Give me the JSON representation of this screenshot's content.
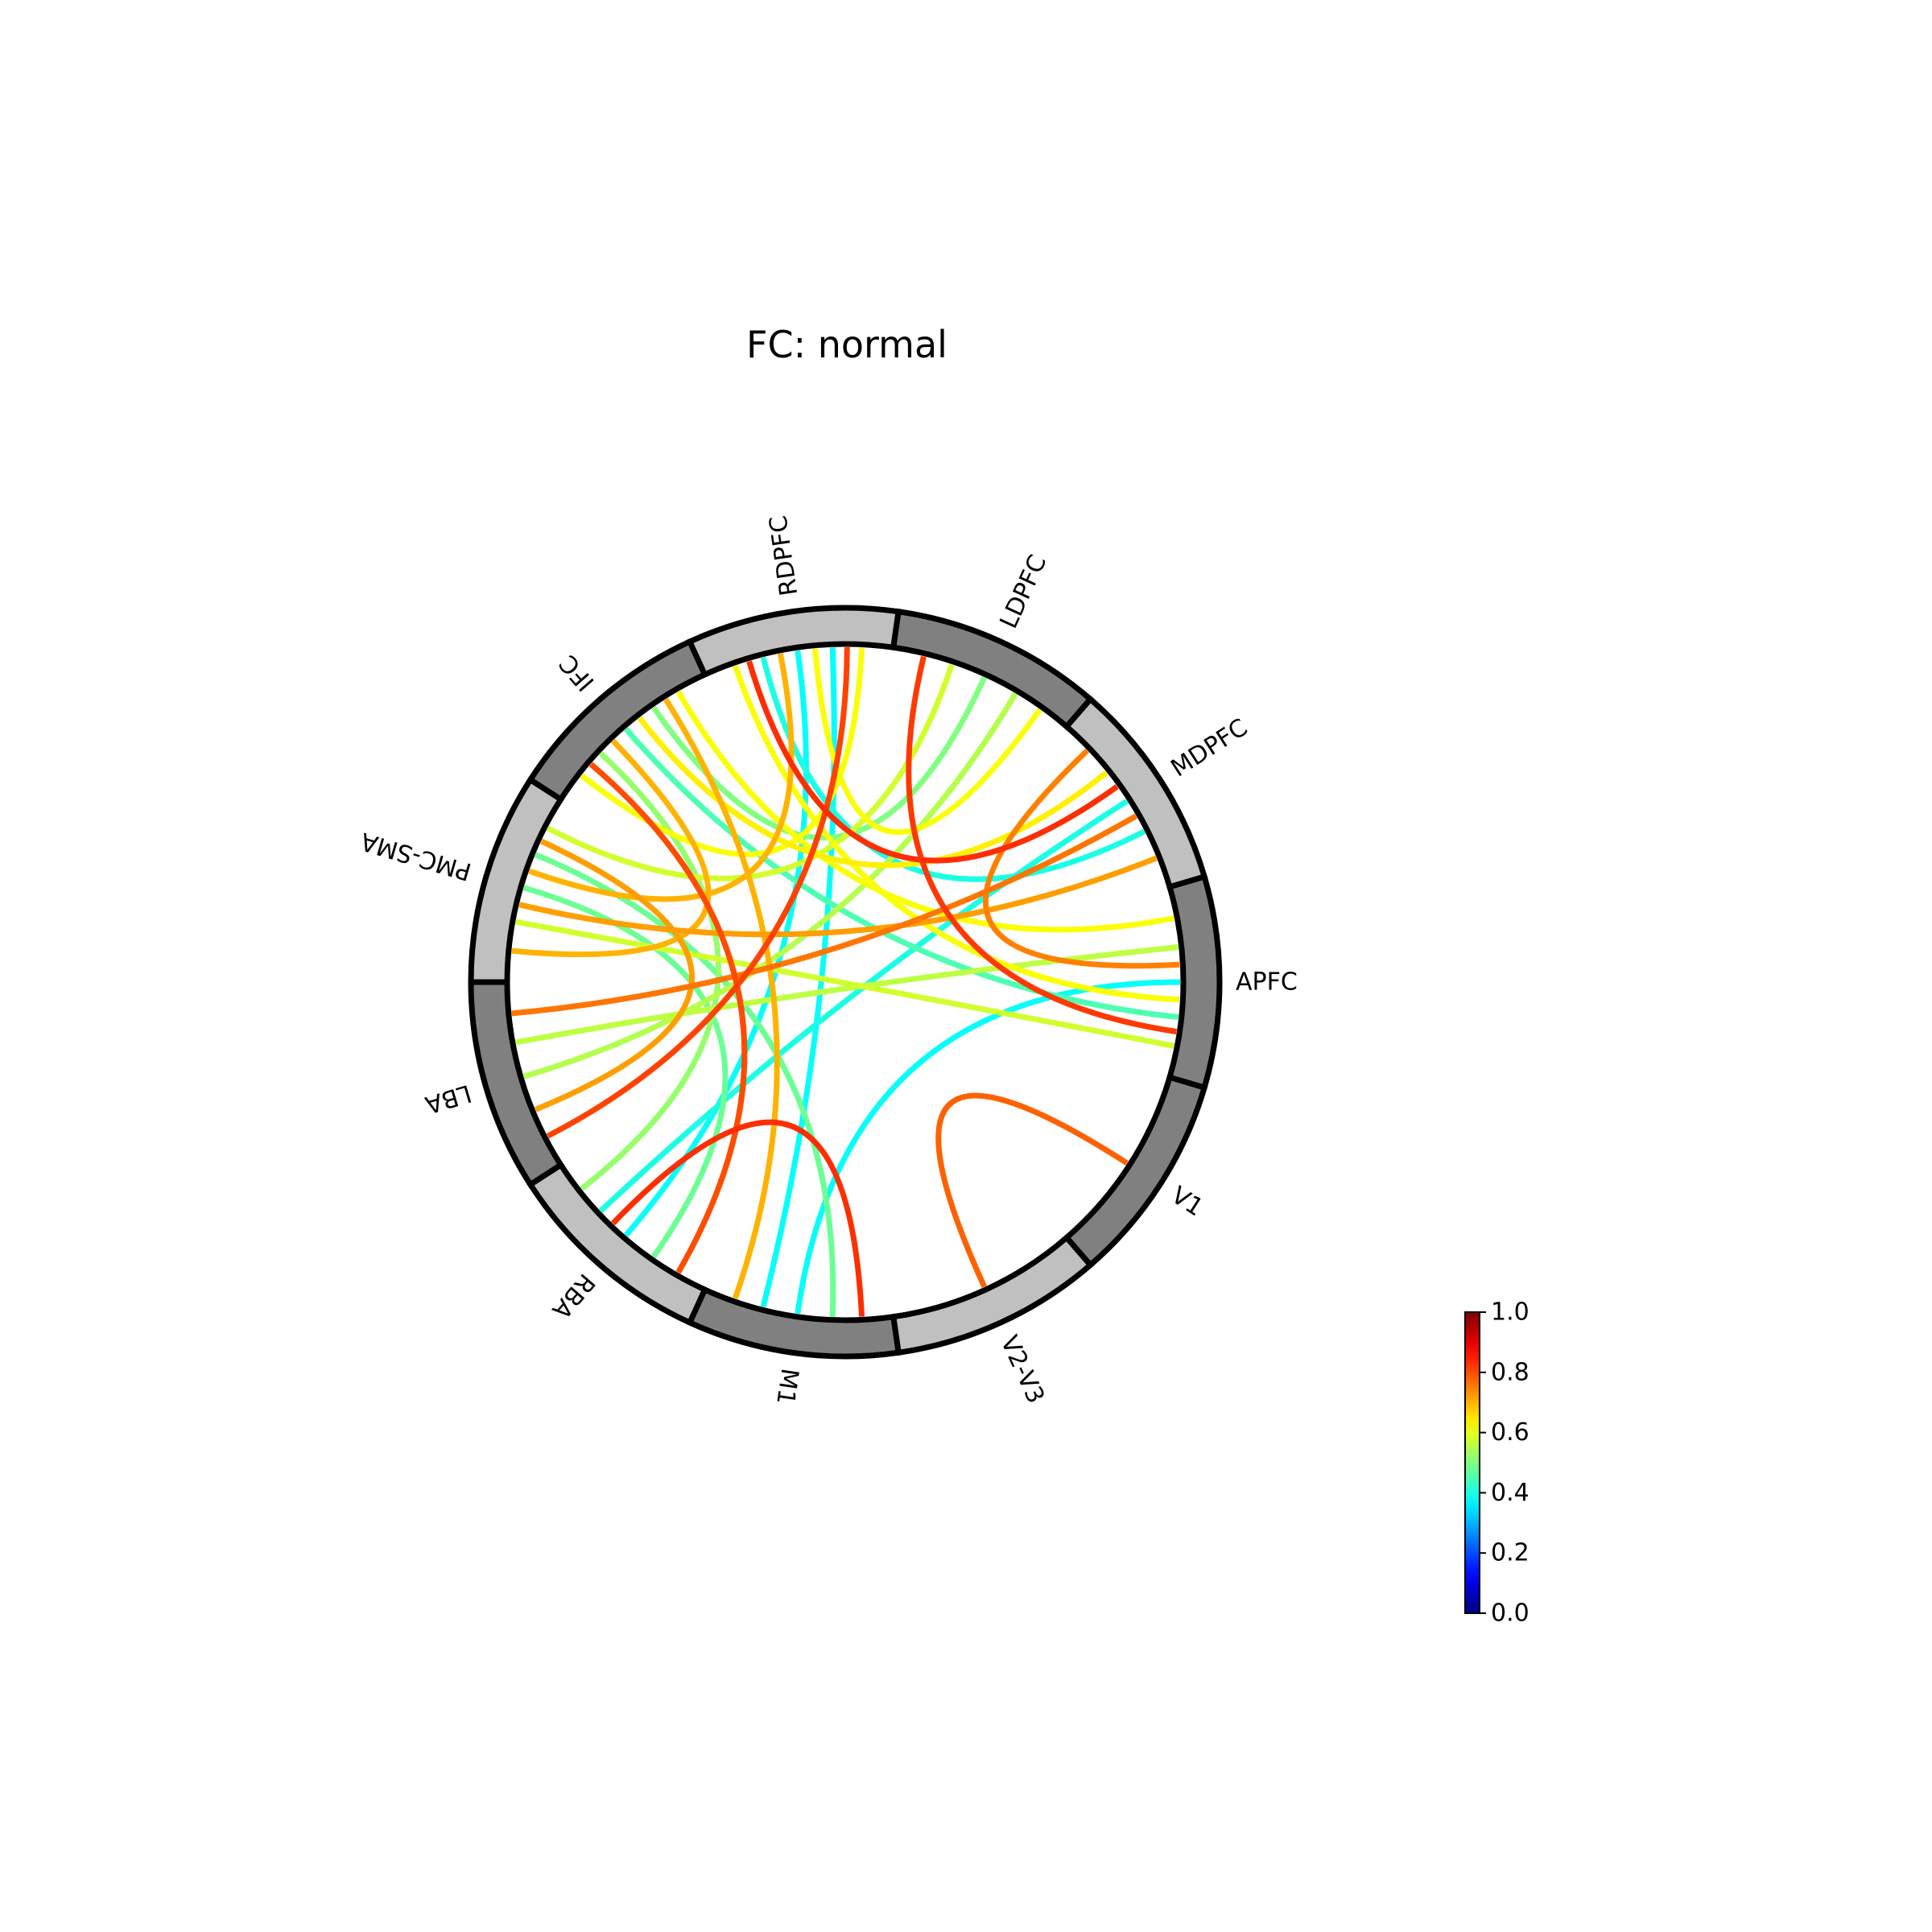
{
  "chart_data": {
    "type": "chord",
    "title": "FC: normal",
    "nodes": [
      "APFC",
      "V1",
      "V2-V3",
      "M1",
      "RBA",
      "LBA",
      "PMC-SMA",
      "IFC",
      "RDPFC",
      "LDPFC",
      "MDPFC"
    ],
    "node_colors": [
      "#808080",
      "#808080",
      "#c0c0c0",
      "#808080",
      "#c0c0c0",
      "#808080",
      "#c0c0c0",
      "#808080",
      "#c0c0c0",
      "#808080",
      "#c0c0c0"
    ],
    "colorbar": {
      "colormap": "jet",
      "vmin": 0.0,
      "vmax": 1.0,
      "ticks": [
        "0.0",
        "0.2",
        "0.4",
        "0.6",
        "0.8",
        "1.0"
      ]
    },
    "edges": [
      {
        "source": "LDPFC",
        "target": "APFC",
        "value": 0.82
      },
      {
        "source": "RDPFC",
        "target": "MDPFC",
        "value": 0.83
      },
      {
        "source": "RDPFC",
        "target": "LBA",
        "value": 0.81
      },
      {
        "source": "IFC",
        "target": "RBA",
        "value": 0.8
      },
      {
        "source": "RBA",
        "target": "M1",
        "value": 0.83
      },
      {
        "source": "V1",
        "target": "V2-V3",
        "value": 0.78
      },
      {
        "source": "MDPFC",
        "target": "APFC",
        "value": 0.75
      },
      {
        "source": "MDPFC",
        "target": "LBA",
        "value": 0.76
      },
      {
        "source": "IFC",
        "target": "PMC-SMA",
        "value": 0.7
      },
      {
        "source": "PMC-SMA",
        "target": "MDPFC",
        "value": 0.72
      },
      {
        "source": "PMC-SMA",
        "target": "LBA",
        "value": 0.72
      },
      {
        "source": "IFC",
        "target": "M1",
        "value": 0.7
      },
      {
        "source": "RDPFC",
        "target": "PMC-SMA",
        "value": 0.7
      },
      {
        "source": "IFC",
        "target": "APFC",
        "value": 0.62
      },
      {
        "source": "IFC",
        "target": "MDPFC",
        "value": 0.64
      },
      {
        "source": "IFC",
        "target": "RDPFC",
        "value": 0.62
      },
      {
        "source": "RDPFC",
        "target": "APFC",
        "value": 0.62
      },
      {
        "source": "PMC-SMA",
        "target": "APFC",
        "value": 0.58
      },
      {
        "source": "LBA",
        "target": "APFC",
        "value": 0.56
      },
      {
        "source": "PMC-SMA",
        "target": "LDPFC",
        "value": 0.58
      },
      {
        "source": "LBA",
        "target": "LDPFC",
        "value": 0.55
      },
      {
        "source": "IFC",
        "target": "LDPFC",
        "value": 0.5
      },
      {
        "source": "RDPFC",
        "target": "LDPFC",
        "value": 0.62
      },
      {
        "source": "IFC",
        "target": "RBA",
        "value": 0.52
      },
      {
        "source": "PMC-SMA",
        "target": "RBA",
        "value": 0.48
      },
      {
        "source": "PMC-SMA",
        "target": "M1",
        "value": 0.48
      },
      {
        "source": "IFC",
        "target": "APFC",
        "value": 0.45
      },
      {
        "source": "RBA",
        "target": "MDPFC",
        "value": 0.4
      },
      {
        "source": "M1",
        "target": "APFC",
        "value": 0.38
      },
      {
        "source": "RBA",
        "target": "RDPFC",
        "value": 0.38
      },
      {
        "source": "RDPFC",
        "target": "M1",
        "value": 0.38
      },
      {
        "source": "RDPFC",
        "target": "MDPFC",
        "value": 0.4
      }
    ]
  }
}
